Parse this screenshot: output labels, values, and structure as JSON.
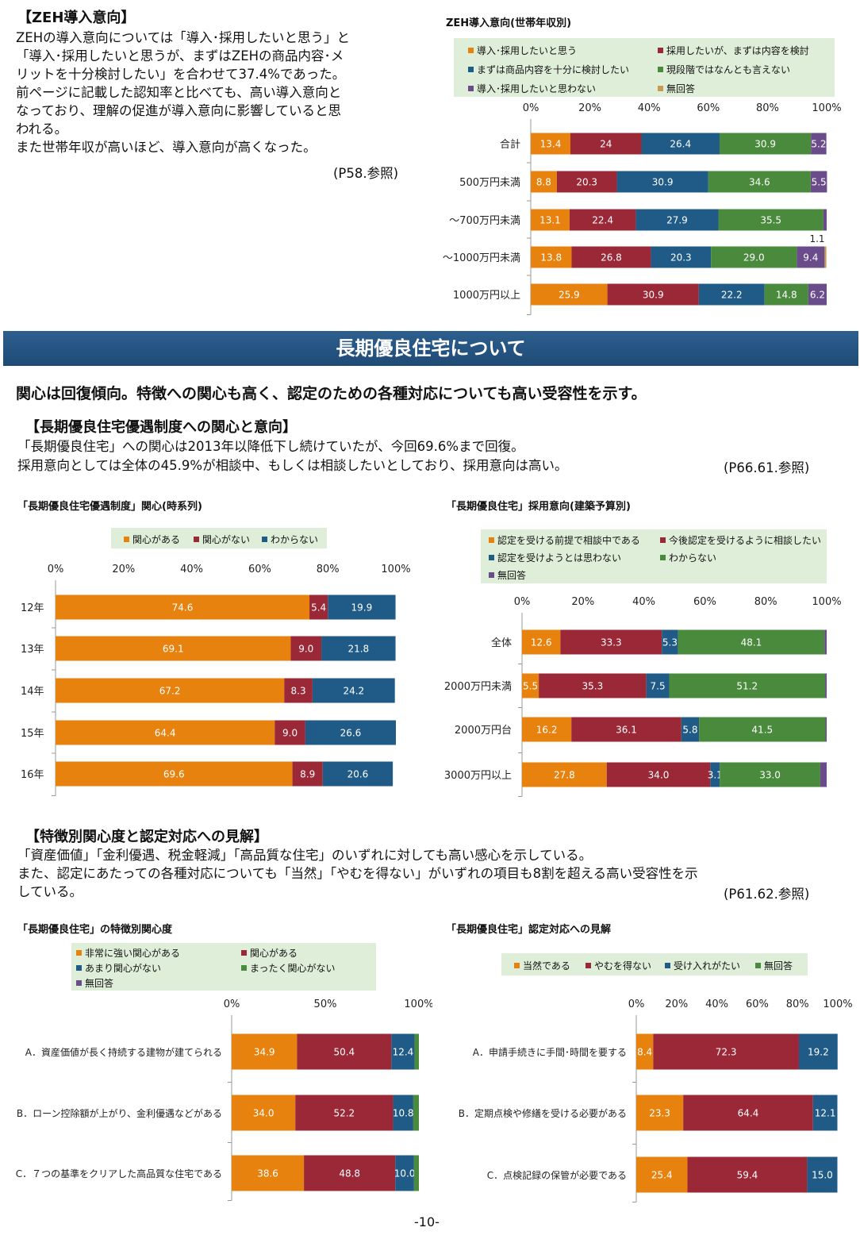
{
  "zeh": {
    "heading": "【ZEH導入意向】",
    "lines": [
      " ZEHの導入意向については「導入･採用したいと思う」と",
      "「導入･採用したいと思うが、まずはZEHの商品内容･メ",
      "リットを十分検討したい」を合わせて37.4%であった。",
      "前ページに記載した認知率と比べても、高い導入意向と",
      "なっており、理解の促進が導入意向に影響していると思",
      "われる。",
      " また世帯年収が高いほど、導入意向が高くなった。"
    ],
    "ref": "(P58.参照)"
  },
  "banner": {
    "title": "長期優良住宅について"
  },
  "headline": "関心は回復傾向。特徴への関心も高く、認定のための各種対応についても高い受容性を示す。",
  "section1": {
    "heading": "【長期優良住宅優遇制度への関心と意向】",
    "line1": "「長期優良住宅」への関心は2013年以降低下し続けていたが、今回69.6%まで回復。",
    "line2": " 採用意向としては全体の45.9%が相談中、もしくは相談したいとしており、採用意向は高い。",
    "ref": "(P66.61.参照)"
  },
  "section2": {
    "heading": "【特徴別関心度と認定対応への見解】",
    "line1": "「資産価値」「金利優遇、税金軽減」「高品質な住宅」のいずれに対しても高い感心を示している。",
    "line2": " また、認定にあたっての各種対応についても「当然」「やむを得ない」がいずれの項目も8割を超える高い受容性を示",
    "line3": "している。",
    "ref": "(P61.62.参照)"
  },
  "page_number": "-10-",
  "colors": {
    "orange": "#e8820e",
    "red": "#9b2837",
    "blue": "#1f5b86",
    "green": "#4a8a3c",
    "purple": "#6a4c8a",
    "tan": "#c89a52"
  },
  "chart_data": [
    {
      "id": "zeh",
      "type": "bar",
      "title": "ZEH導入意向(世帯年収別)",
      "orientation": "horizontal-stacked",
      "xlim": [
        0,
        100
      ],
      "ticks": [
        "0%",
        "20%",
        "40%",
        "60%",
        "80%",
        "100%"
      ],
      "categories": [
        "合計",
        "500万円未満",
        "～700万円未満",
        "～1000万円未満",
        "1000万円以上"
      ],
      "series": [
        {
          "name": "導入･採用したいと思う",
          "color": "#e8820e",
          "values": [
            13.4,
            8.8,
            13.1,
            13.8,
            25.9
          ],
          "labels": [
            "13.4",
            "8.8",
            "13.1",
            "13.8",
            "25.9"
          ]
        },
        {
          "name": "採用したいが、まずは内容を検討",
          "color": "#9b2837",
          "values": [
            24,
            20.3,
            22.4,
            26.8,
            30.9
          ],
          "labels": [
            "24",
            "20.3",
            "22.4",
            "26.8",
            "30.9"
          ]
        },
        {
          "name": "まずは商品内容を十分に検討したい",
          "color": "#1f5b86",
          "values": [
            26.4,
            30.9,
            27.9,
            20.3,
            22.2
          ],
          "labels": [
            "26.4",
            "30.9",
            "27.9",
            "20.3",
            "22.2"
          ]
        },
        {
          "name": "現段階ではなんとも言えない",
          "color": "#4a8a3c",
          "values": [
            30.9,
            34.6,
            35.5,
            29.0,
            14.8
          ],
          "labels": [
            "30.9",
            "34.6",
            "35.5",
            "29.0",
            "14.8"
          ]
        },
        {
          "name": "導入･採用したいと思わない",
          "color": "#6a4c8a",
          "values": [
            5.2,
            5.5,
            1.1,
            9.4,
            6.2
          ],
          "labels": [
            "5.2",
            "5.5",
            "1.1",
            "9.4",
            "6.2"
          ]
        },
        {
          "name": "無回答",
          "color": "#c89a52",
          "values": [
            0,
            0,
            0,
            0.6,
            0
          ],
          "labels": [
            "",
            "",
            "",
            "",
            ""
          ]
        }
      ]
    },
    {
      "id": "interest",
      "type": "bar",
      "title": "「長期優良住宅優遇制度」関心(時系列)",
      "orientation": "horizontal-stacked",
      "xlim": [
        0,
        100
      ],
      "ticks": [
        "0%",
        "20%",
        "40%",
        "60%",
        "80%",
        "100%"
      ],
      "categories": [
        "12年",
        "13年",
        "14年",
        "15年",
        "16年"
      ],
      "series": [
        {
          "name": "関心がある",
          "color": "#e8820e",
          "values": [
            74.6,
            69.1,
            67.2,
            64.4,
            69.6
          ],
          "labels": [
            "74.6",
            "69.1",
            "67.2",
            "64.4",
            "69.6"
          ]
        },
        {
          "name": "関心がない",
          "color": "#9b2837",
          "values": [
            5.4,
            9.0,
            8.3,
            9.0,
            8.9
          ],
          "labels": [
            "5.4",
            "9.0",
            "8.3",
            "9.0",
            "8.9"
          ]
        },
        {
          "name": "わからない",
          "color": "#1f5b86",
          "values": [
            19.9,
            21.8,
            24.2,
            26.6,
            20.6
          ],
          "labels": [
            "19.9",
            "21.8",
            "24.2",
            "26.6",
            "20.6"
          ]
        }
      ]
    },
    {
      "id": "adoption",
      "type": "bar",
      "title": "「長期優良住宅」採用意向(建築予算別)",
      "orientation": "horizontal-stacked",
      "xlim": [
        0,
        100
      ],
      "ticks": [
        "0%",
        "20%",
        "40%",
        "60%",
        "80%",
        "100%"
      ],
      "categories": [
        "全体",
        "2000万円未満",
        "2000万円台",
        "3000万円以上"
      ],
      "series": [
        {
          "name": "認定を受ける前提で相談中である",
          "color": "#e8820e",
          "values": [
            12.6,
            5.5,
            16.2,
            27.8
          ],
          "labels": [
            "12.6",
            "5.5",
            "16.2",
            "27.8"
          ]
        },
        {
          "name": "今後認定を受けるように相談したい",
          "color": "#9b2837",
          "values": [
            33.3,
            35.3,
            36.1,
            34.0
          ],
          "labels": [
            "33.3",
            "35.3",
            "36.1",
            "34.0"
          ]
        },
        {
          "name": "認定を受けようとは思わない",
          "color": "#1f5b86",
          "values": [
            5.3,
            7.5,
            5.8,
            3.1
          ],
          "labels": [
            "5.3",
            "7.5",
            "5.8",
            "3.1"
          ]
        },
        {
          "name": "わからない",
          "color": "#4a8a3c",
          "values": [
            48.1,
            51.2,
            41.5,
            33.0
          ],
          "labels": [
            "48.1",
            "51.2",
            "41.5",
            "33.0"
          ]
        },
        {
          "name": "無回答",
          "color": "#6a4c8a",
          "values": [
            0.7,
            0.5,
            0.4,
            2.1
          ],
          "labels": [
            "",
            "",
            "",
            ""
          ]
        }
      ]
    },
    {
      "id": "features",
      "type": "bar",
      "title": "「長期優良住宅」の特徴別関心度",
      "orientation": "horizontal-stacked",
      "xlim": [
        0,
        100
      ],
      "ticks": [
        "0%",
        "50%",
        "100%"
      ],
      "categories": [
        "A．資産価値が長く持続する建物が建てられる",
        "B．ローン控除額が上がり、金利優遇などがある",
        "C．７つの基準をクリアした高品質な住宅である"
      ],
      "series": [
        {
          "name": "非常に強い関心がある",
          "color": "#e8820e",
          "values": [
            34.9,
            34.0,
            38.6
          ],
          "labels": [
            "34.9",
            "34.0",
            "38.6"
          ]
        },
        {
          "name": "関心がある",
          "color": "#9b2837",
          "values": [
            50.4,
            52.2,
            48.8
          ],
          "labels": [
            "50.4",
            "52.2",
            "48.8"
          ]
        },
        {
          "name": "あまり関心がない",
          "color": "#1f5b86",
          "values": [
            12.4,
            10.8,
            10.0
          ],
          "labels": [
            "12.4",
            "10.8",
            "10.0"
          ]
        },
        {
          "name": "まったく関心がない",
          "color": "#4a8a3c",
          "values": [
            2.3,
            3.0,
            2.6
          ],
          "labels": [
            "",
            "",
            ""
          ]
        },
        {
          "name": "無回答",
          "color": "#6a4c8a",
          "values": [
            0,
            0,
            0
          ],
          "labels": [
            "",
            "",
            ""
          ]
        }
      ]
    },
    {
      "id": "certification",
      "type": "bar",
      "title": "「長期優良住宅」認定対応への見解",
      "orientation": "horizontal-stacked",
      "xlim": [
        0,
        100
      ],
      "ticks": [
        "0%",
        "20%",
        "40%",
        "60%",
        "80%",
        "100%"
      ],
      "categories": [
        "A．申請手続きに手間･時間を要する",
        "B．定期点検や修繕を受ける必要がある",
        "C．点検記録の保管が必要である"
      ],
      "series": [
        {
          "name": "当然である",
          "color": "#e8820e",
          "values": [
            8.4,
            23.3,
            25.4
          ],
          "labels": [
            "8.4",
            "23.3",
            "25.4"
          ]
        },
        {
          "name": "やむを得ない",
          "color": "#9b2837",
          "values": [
            72.3,
            64.4,
            59.4
          ],
          "labels": [
            "72.3",
            "64.4",
            "59.4"
          ]
        },
        {
          "name": "受け入れがたい",
          "color": "#1f5b86",
          "values": [
            19.2,
            12.1,
            15.0
          ],
          "labels": [
            "19.2",
            "12.1",
            "15.0"
          ]
        },
        {
          "name": "無回答",
          "color": "#4a8a3c",
          "values": [
            0,
            0,
            0
          ],
          "labels": [
            "",
            "",
            ""
          ]
        }
      ]
    }
  ]
}
